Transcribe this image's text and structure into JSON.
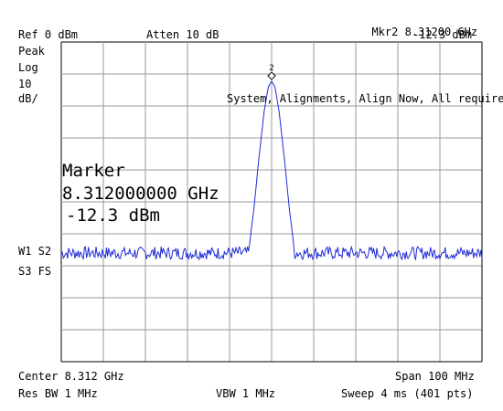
{
  "header": {
    "marker_id": "Mkr2",
    "marker_freq": "8.31200 GHz",
    "marker_amp": "-12.3 dBm",
    "ref_level": "Ref 0 dBm",
    "attenuation": "Atten 10 dB"
  },
  "left_panel": {
    "detector": "Peak",
    "scale_type": "Log",
    "scale_value": "10",
    "scale_unit": "dB/",
    "trace_flags_1": "W1 S2",
    "trace_flags_2": "S3 FS"
  },
  "message": "System, Alignments, Align Now, All required",
  "marker_readout": {
    "title": "Marker",
    "frequency": "8.312000000 GHz",
    "amplitude": "-12.3 dBm"
  },
  "marker_label": "2",
  "footer": {
    "center": "Center 8.312 GHz",
    "span": "Span 100 MHz",
    "res_bw": "Res BW 1 MHz",
    "vbw": "VBW 1 MHz",
    "sweep": "Sweep 4 ms (401 pts)"
  },
  "colors": {
    "trace": "#1f2bd6",
    "grid": "#9a9a9a",
    "frame": "#000000"
  },
  "chart_data": {
    "type": "line",
    "x_unit": "GHz",
    "y_unit": "dBm",
    "xlim": [
      8.262,
      8.362
    ],
    "ylim": [
      -100,
      0
    ],
    "grid": true,
    "divisions": 10,
    "noise_floor": -66,
    "noise_ripple": 2,
    "points": 401,
    "series": [
      {
        "values_peak": [
          [
            8.3065,
            -66
          ],
          [
            8.3078,
            -52
          ],
          [
            8.309,
            -36
          ],
          [
            8.3102,
            -22
          ],
          [
            8.3112,
            -14
          ],
          [
            8.312,
            -12.3
          ],
          [
            8.3128,
            -14
          ],
          [
            8.3138,
            -22
          ],
          [
            8.315,
            -36
          ],
          [
            8.3162,
            -52
          ],
          [
            8.3175,
            -66
          ]
        ]
      }
    ],
    "marker": {
      "x": 8.312,
      "y": -12.3
    }
  }
}
